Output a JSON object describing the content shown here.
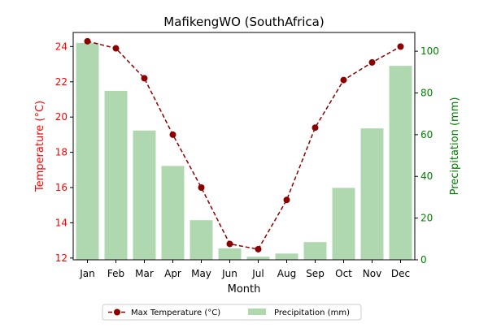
{
  "chart_data": {
    "type": "bar",
    "title": "MafikengWO (SouthAfrica)",
    "xlabel": "Month",
    "categories": [
      "Jan",
      "Feb",
      "Mar",
      "Apr",
      "May",
      "Jun",
      "Jul",
      "Aug",
      "Sep",
      "Oct",
      "Nov",
      "Dec"
    ],
    "y_left": {
      "label": "Temperature (°C)",
      "range": [
        11.9,
        24.8
      ],
      "ticks": [
        12,
        14,
        16,
        18,
        20,
        22,
        24
      ],
      "color": "#ff0000"
    },
    "y_right": {
      "label": "Precipitation (mm)",
      "range": [
        0,
        109
      ],
      "ticks": [
        0,
        20,
        40,
        60,
        80,
        100
      ],
      "color": "#008000"
    },
    "series": [
      {
        "name": "Max Temperature (°C)",
        "type": "line",
        "axis": "left",
        "color": "#8b0000",
        "values": [
          24.3,
          23.9,
          22.2,
          19.0,
          16.0,
          12.8,
          12.5,
          15.3,
          19.4,
          22.1,
          23.1,
          24.0
        ]
      },
      {
        "name": "Precipitation (mm)",
        "type": "bar",
        "axis": "right",
        "color": "#b0d8b0",
        "values": [
          104,
          81,
          62,
          45,
          19,
          5.5,
          1.5,
          3,
          8.5,
          34.5,
          63,
          93
        ]
      }
    ],
    "legend_position": "bottom-center",
    "grid": false
  }
}
